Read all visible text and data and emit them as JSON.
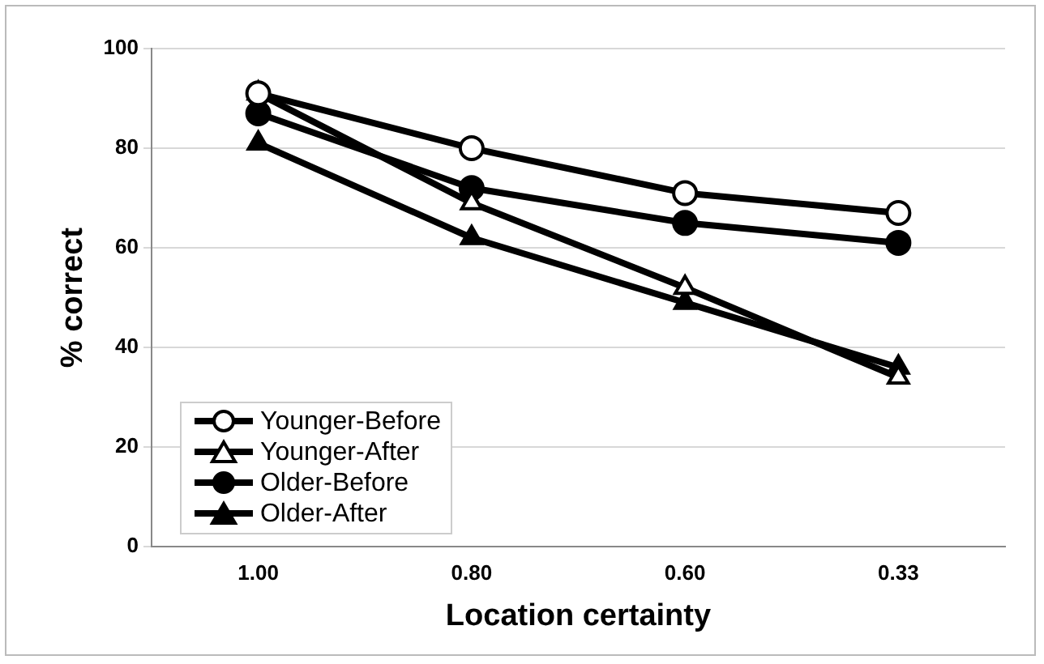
{
  "chart_data": {
    "type": "line",
    "xlabel": "Location certainty",
    "ylabel": "% correct",
    "categories": [
      "1.00",
      "0.80",
      "0.60",
      "0.33"
    ],
    "series": [
      {
        "name": "Younger-Before",
        "color": "#000000",
        "marker": "circle",
        "values": [
          91,
          80,
          71,
          67
        ]
      },
      {
        "name": "Younger-After",
        "color": "#000000",
        "marker": "triangle",
        "values": [
          91,
          69,
          52,
          34
        ]
      },
      {
        "name": "Older-Before",
        "color": "#000000",
        "marker": "circle",
        "values": [
          87,
          72,
          65,
          61
        ]
      },
      {
        "name": "Older-After",
        "color": "#000000",
        "marker": "triangle",
        "values": [
          81,
          62,
          49,
          36
        ]
      }
    ],
    "ylim": [
      0,
      100
    ],
    "yticks": [
      0,
      20,
      40,
      60,
      80,
      100
    ],
    "grid": "y",
    "legend": "bottom left",
    "line_style": "solid"
  }
}
